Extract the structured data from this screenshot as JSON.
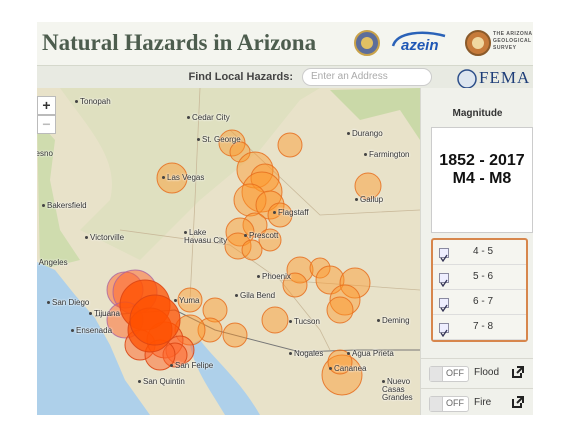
{
  "header": {
    "title": "Natural Hazards in Arizona",
    "partner": "azein",
    "survey": "THE ARIZONA GEOLOGICAL SURVEY",
    "agency": "FEMA"
  },
  "search": {
    "label": "Find Local Hazards:",
    "placeholder": "Enter an Address"
  },
  "map": {
    "zoom_in": "+",
    "zoom_out": "−",
    "labels": [
      "Tonopah",
      "Fresno",
      "Cedar City",
      "St. George",
      "Durango",
      "Farmington",
      "Las Vegas",
      "Flagstaff",
      "Gallup",
      "Bakersfield",
      "Victorville",
      "Lake Havasu City",
      "Prescott",
      "Los Angeles",
      "Phoenix",
      "Gila Bend",
      "San Diego",
      "Tijuana",
      "Yuma",
      "Tucson",
      "Deming",
      "Ensenada",
      "Nogales",
      "Agua Prieta",
      "San Felipe",
      "Cananea",
      "San Quintin",
      "Nuevo Casas Grandes"
    ]
  },
  "sidebar": {
    "title": "Magnitude",
    "years": "1852 - 2017",
    "magnitudes": "M4 - M8",
    "classes": [
      "4 - 5",
      "5 - 6",
      "6 - 7",
      "7 - 8"
    ],
    "toggles": [
      {
        "state": "OFF",
        "label": "Flood"
      },
      {
        "state": "OFF",
        "label": "Fire"
      }
    ]
  }
}
